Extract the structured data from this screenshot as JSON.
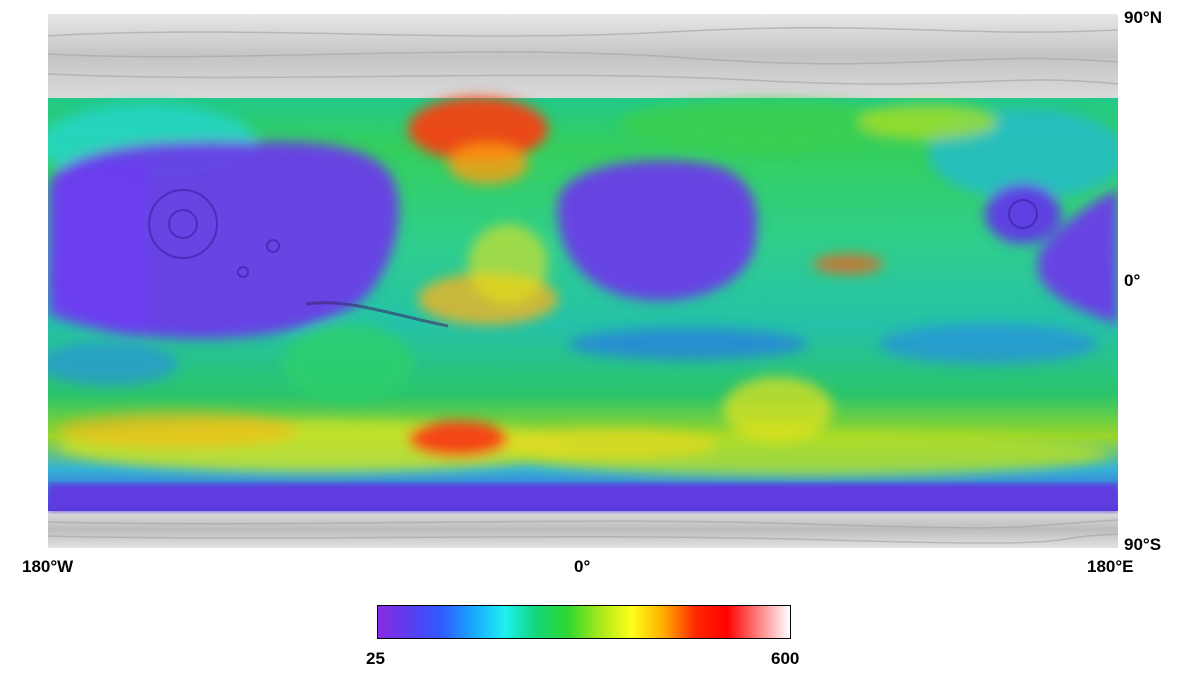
{
  "axes": {
    "lat_top": "90°N",
    "lat_equator": "0°",
    "lat_bottom": "90°S",
    "lon_left": "180°W",
    "lon_center": "0°",
    "lon_right": "180°E"
  },
  "colorbar": {
    "min_label": "25",
    "max_label": "600",
    "colors": [
      "#8a2be2",
      "#5a3cf0",
      "#2f5bff",
      "#18a8ff",
      "#1ff0f0",
      "#12d67a",
      "#2ed82e",
      "#a8e81c",
      "#ffff1a",
      "#ffae00",
      "#ff2a00",
      "#ff0000",
      "#ff8080",
      "#ffffff"
    ]
  },
  "map": {
    "colors": {
      "polar_gray": "#cfcfcf",
      "low": "#6a3ce8",
      "mid_low": "#2a6cf5",
      "mid": "#27d07c",
      "mid_high": "#b6e020",
      "high": "#ff3b10"
    }
  }
}
